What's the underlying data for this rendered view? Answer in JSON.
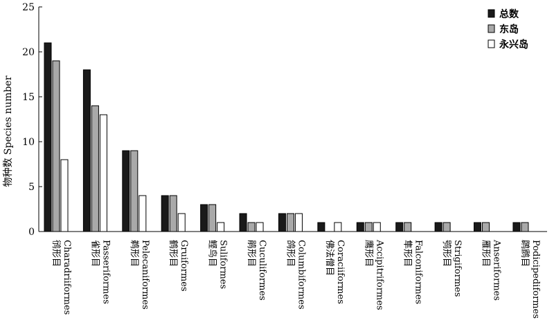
{
  "chart_data": {
    "type": "bar",
    "title": "",
    "ylabel": "物种数 Species number",
    "xlabel": "",
    "ylim": [
      0,
      25
    ],
    "yticks": [
      0,
      5,
      10,
      15,
      20,
      25
    ],
    "grid": false,
    "legend_position": "top-right",
    "categories": [
      {
        "zh": "鸻形目",
        "en": "Charadriiformes"
      },
      {
        "zh": "雀形目",
        "en": "Passeriformes"
      },
      {
        "zh": "鹈形目",
        "en": "Pelecaniformes"
      },
      {
        "zh": "鹤形目",
        "en": "Gruiformes"
      },
      {
        "zh": "鲣鸟目",
        "en": "Suliformes"
      },
      {
        "zh": "鹃形目",
        "en": "Cuculiformes"
      },
      {
        "zh": "鸽形目",
        "en": "Columbiformes"
      },
      {
        "zh": "佛法僧目",
        "en": "Coraciiformes"
      },
      {
        "zh": "鹰形目",
        "en": "Accipitriformes"
      },
      {
        "zh": "隼形目",
        "en": "Falconiformes"
      },
      {
        "zh": "鸮形目",
        "en": "Strigiformes"
      },
      {
        "zh": "雁形目",
        "en": "Anseriformes"
      },
      {
        "zh": "䴙䴘目",
        "en": "Podicipediformes"
      }
    ],
    "series": [
      {
        "name": "总数",
        "color": "#1a1a1a",
        "values": [
          21,
          18,
          9,
          4,
          3,
          2,
          2,
          1,
          1,
          1,
          1,
          1,
          1
        ]
      },
      {
        "name": "东岛",
        "color": "#a9a9a9",
        "values": [
          19,
          14,
          9,
          4,
          3,
          1,
          2,
          0,
          1,
          1,
          1,
          1,
          1
        ]
      },
      {
        "name": "永兴岛",
        "color": "#ffffff",
        "values": [
          8,
          13,
          4,
          2,
          1,
          1,
          2,
          1,
          1,
          0,
          0,
          0,
          0
        ]
      }
    ]
  }
}
